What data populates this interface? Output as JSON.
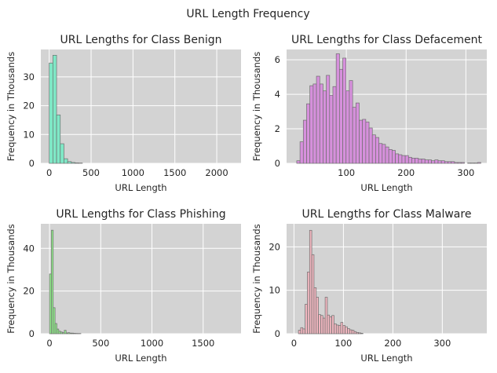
{
  "figure": {
    "suptitle": "URL Length Frequency"
  },
  "colors": {
    "plot_bg": "#d3d3d3",
    "grid": "#ffffff",
    "bar_edge": "#6e6e6e"
  },
  "chart_data": [
    {
      "type": "bar",
      "title": "URL Lengths for Class Benign",
      "xlabel": "URL Length",
      "ylabel": "Frequency in Thousands",
      "color": "#7fe8c6",
      "xlim": [
        -100,
        2290
      ],
      "ylim": [
        0,
        39.5
      ],
      "xticks": [
        0,
        500,
        1000,
        1500,
        2000
      ],
      "yticks": [
        0,
        10,
        20,
        30
      ],
      "bin_width": 44,
      "x": [
        0,
        44,
        88,
        132,
        176,
        220,
        264,
        308,
        352
      ],
      "values": [
        34.8,
        37.5,
        16.8,
        6.8,
        1.6,
        0.6,
        0.3,
        0.15,
        0.1
      ]
    },
    {
      "type": "bar",
      "title": "URL Lengths for Class Defacement",
      "xlabel": "URL Length",
      "ylabel": "Frequency in Thousands",
      "color": "#d690dc",
      "xlim": [
        0,
        335
      ],
      "ylim": [
        0,
        6.6
      ],
      "xticks": [
        100,
        200,
        300
      ],
      "yticks": [
        0,
        2,
        4,
        6
      ],
      "bin_width": 5.5,
      "x": [
        17,
        22.5,
        28,
        33.5,
        39,
        44.5,
        50,
        55.5,
        61,
        66.5,
        72,
        77.5,
        83,
        88.5,
        94,
        99.5,
        105,
        110.5,
        116,
        121.5,
        127,
        132.5,
        138,
        143.5,
        149,
        154.5,
        160,
        165.5,
        171,
        176.5,
        182,
        187.5,
        193,
        198.5,
        204,
        209.5,
        215,
        220.5,
        226,
        231.5,
        237,
        242.5,
        248,
        253.5,
        259,
        264.5,
        270,
        275.5,
        281,
        286.5,
        292,
        297.5,
        303,
        308.5,
        314,
        319.5
      ],
      "values": [
        0.15,
        1.25,
        2.5,
        3.45,
        4.5,
        4.6,
        5.05,
        4.6,
        4.2,
        5.1,
        3.95,
        4.45,
        6.35,
        5.45,
        6.1,
        4.2,
        4.8,
        3.25,
        3.5,
        2.5,
        2.55,
        2.4,
        2.05,
        1.65,
        1.5,
        1.15,
        1.1,
        0.95,
        0.8,
        0.75,
        0.55,
        0.5,
        0.45,
        0.45,
        0.35,
        0.3,
        0.3,
        0.25,
        0.25,
        0.2,
        0.2,
        0.15,
        0.2,
        0.15,
        0.15,
        0.1,
        0.1,
        0.1,
        0.05,
        0.05,
        0.05,
        0.0,
        0.02,
        0.02,
        0.02,
        0.05
      ]
    },
    {
      "type": "bar",
      "title": "URL Lengths for Class Phishing",
      "xlabel": "URL Length",
      "ylabel": "Frequency in Thousands",
      "color": "#90e88a",
      "xlim": [
        -85,
        1870
      ],
      "ylim": [
        0,
        51.5
      ],
      "xticks": [
        0,
        500,
        1000,
        1500
      ],
      "yticks": [
        0,
        20,
        40
      ],
      "bin_width": 18,
      "x": [
        0,
        18,
        36,
        54,
        72,
        90,
        108,
        126,
        144,
        162,
        180,
        198,
        216,
        234,
        252,
        270,
        288
      ],
      "values": [
        28.0,
        48.5,
        12.2,
        4.8,
        2.2,
        1.2,
        0.8,
        0.5,
        1.6,
        0.4,
        0.5,
        0.3,
        0.3,
        0.2,
        0.15,
        0.1,
        0.1
      ]
    },
    {
      "type": "bar",
      "title": "URL Lengths for Class Malware",
      "xlabel": "URL Length",
      "ylabel": "Frequency in Thousands",
      "color": "#f0b6bf",
      "xlim": [
        -15,
        390
      ],
      "ylim": [
        0,
        25.3
      ],
      "xticks": [
        0,
        100,
        200,
        300
      ],
      "yticks": [
        0,
        10,
        20
      ],
      "bin_width": 4.5,
      "x": [
        9,
        13.5,
        18,
        22.5,
        27,
        31.5,
        36,
        40.5,
        45,
        49.5,
        54,
        58.5,
        63,
        67.5,
        72,
        76.5,
        81,
        85.5,
        90,
        94.5,
        99,
        103.5,
        108,
        112.5,
        117,
        121.5,
        126,
        130.5,
        135
      ],
      "values": [
        0.8,
        1.4,
        1.1,
        6.8,
        14.2,
        23.8,
        18.2,
        10.6,
        8.4,
        4.4,
        4.2,
        3.6,
        8.4,
        4.3,
        3.9,
        4.2,
        2.3,
        2.0,
        1.9,
        2.6,
        1.9,
        1.6,
        1.2,
        0.9,
        0.8,
        0.5,
        0.3,
        0.2,
        0.1
      ]
    }
  ]
}
